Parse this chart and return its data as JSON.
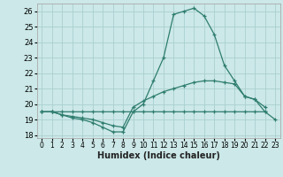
{
  "xlabel": "Humidex (Indice chaleur)",
  "x": [
    0,
    1,
    2,
    3,
    4,
    5,
    6,
    7,
    8,
    9,
    10,
    11,
    12,
    13,
    14,
    15,
    16,
    17,
    18,
    19,
    20,
    21,
    22,
    23
  ],
  "line1": [
    19.5,
    19.5,
    19.3,
    19.1,
    19.0,
    18.8,
    18.5,
    18.2,
    18.2,
    19.5,
    20.0,
    21.5,
    23.0,
    25.8,
    26.0,
    26.2,
    25.7,
    24.5,
    22.5,
    21.5,
    20.5,
    20.3,
    19.5,
    null
  ],
  "line2": [
    19.5,
    19.5,
    19.3,
    19.2,
    19.1,
    19.0,
    18.8,
    18.6,
    18.5,
    19.8,
    20.2,
    20.5,
    20.8,
    21.0,
    21.2,
    21.4,
    21.5,
    21.5,
    21.4,
    21.3,
    20.5,
    20.3,
    19.8,
    null
  ],
  "line3": [
    19.5,
    19.5,
    19.5,
    19.5,
    19.5,
    19.5,
    19.5,
    19.5,
    19.5,
    19.5,
    19.5,
    19.5,
    19.5,
    19.5,
    19.5,
    19.5,
    19.5,
    19.5,
    19.5,
    19.5,
    19.5,
    19.5,
    19.5,
    19.0
  ],
  "line_color": "#2e7d6e",
  "bg_color": "#cce8e8",
  "grid_color": "#aacfcf",
  "ylim": [
    17.8,
    26.5
  ],
  "xlim": [
    -0.5,
    23.5
  ],
  "yticks": [
    18,
    19,
    20,
    21,
    22,
    23,
    24,
    25,
    26
  ],
  "xticks": [
    0,
    1,
    2,
    3,
    4,
    5,
    6,
    7,
    8,
    9,
    10,
    11,
    12,
    13,
    14,
    15,
    16,
    17,
    18,
    19,
    20,
    21,
    22,
    23
  ]
}
